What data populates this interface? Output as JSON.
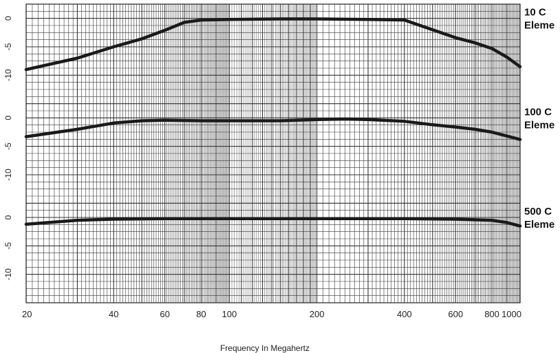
{
  "chart_data": {
    "type": "line",
    "x_scale": "log",
    "xlim": [
      20,
      1000
    ],
    "xlabel": "Frequency In Megahertz",
    "x_ticks": [
      20,
      40,
      60,
      80,
      100,
      200,
      400,
      600,
      800,
      1000
    ],
    "grid": true,
    "panels": [
      {
        "name_lines": [
          "10 C",
          "Eleme"
        ],
        "y_ticks": [
          "0",
          "-5",
          "-10"
        ],
        "ylim": [
          -15,
          2.5
        ],
        "x": [
          20,
          30,
          40,
          50,
          60,
          70,
          80,
          100,
          150,
          200,
          300,
          400,
          500,
          600,
          700,
          800,
          900,
          1000
        ],
        "y": [
          -9,
          -7,
          -5,
          -3.6,
          -2.1,
          -0.7,
          -0.3,
          -0.2,
          -0.1,
          -0.1,
          -0.2,
          -0.3,
          -2,
          -3.4,
          -4.3,
          -5.3,
          -6.8,
          -8.5
        ]
      },
      {
        "name_lines": [
          "100 C",
          "Eleme"
        ],
        "y_ticks": [
          "0",
          "-5",
          "-10"
        ],
        "ylim": [
          -15,
          2.5
        ],
        "x": [
          20,
          30,
          40,
          50,
          60,
          80,
          100,
          150,
          200,
          250,
          300,
          400,
          500,
          600,
          700,
          800,
          1000
        ],
        "y": [
          -3.3,
          -2,
          -0.9,
          -0.5,
          -0.4,
          -0.5,
          -0.5,
          -0.5,
          -0.3,
          -0.2,
          -0.3,
          -0.6,
          -1.2,
          -1.6,
          -2,
          -2.5,
          -3.8
        ]
      },
      {
        "name_lines": [
          "500 C",
          "Eleme"
        ],
        "y_ticks": [
          "0",
          "-5",
          "-10"
        ],
        "ylim": [
          -15,
          2.5
        ],
        "x": [
          20,
          30,
          40,
          60,
          100,
          200,
          400,
          600,
          800,
          900,
          1000
        ],
        "y": [
          -1.2,
          -0.5,
          -0.3,
          -0.2,
          -0.2,
          -0.2,
          -0.2,
          -0.3,
          -0.5,
          -0.9,
          -1.5
        ]
      }
    ]
  }
}
